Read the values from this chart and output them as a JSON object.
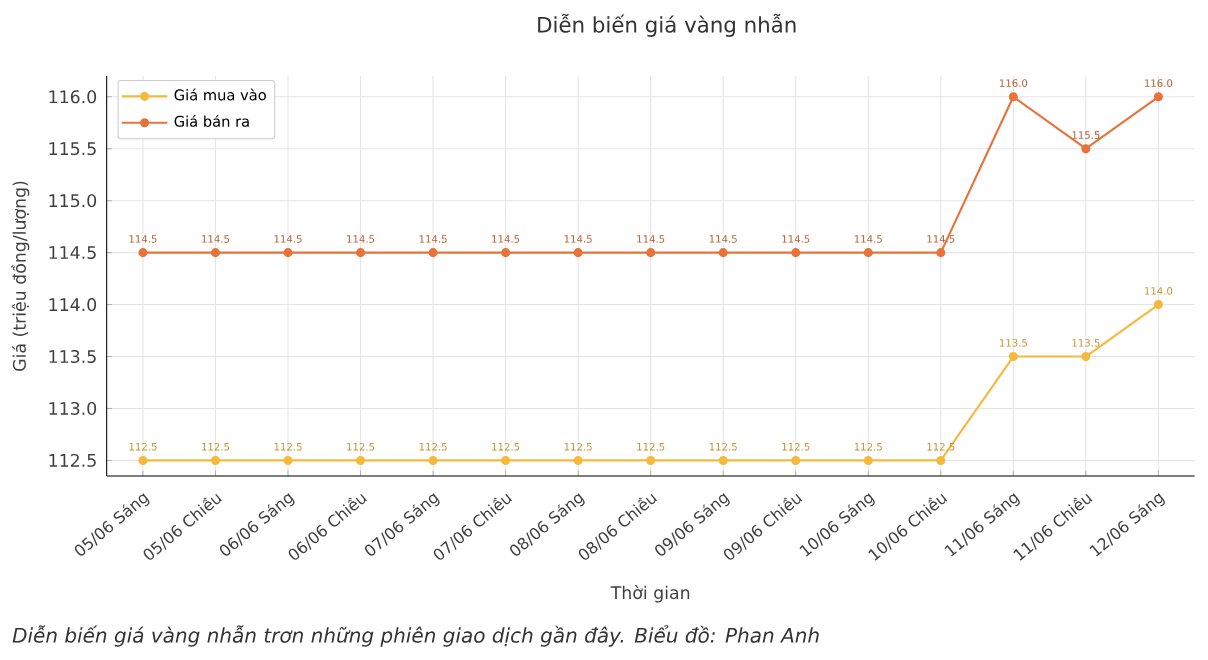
{
  "chart_data": {
    "type": "line",
    "title": "Diễn biến giá vàng nhẫn",
    "xlabel": "Thời gian",
    "ylabel": "Giá (triệu đồng/lượng)",
    "categories": [
      "05/06 Sáng",
      "05/06 Chiều",
      "06/06 Sáng",
      "06/06 Chiều",
      "07/06 Sáng",
      "07/06 Chiều",
      "08/06 Sáng",
      "08/06 Chiều",
      "09/06 Sáng",
      "09/06 Chiều",
      "10/06 Sáng",
      "10/06 Chiều",
      "11/06 Sáng",
      "11/06 Chiều",
      "12/06 Sáng"
    ],
    "series": [
      {
        "name": "Giá mua vào",
        "color": "#f5b93d",
        "values": [
          112.5,
          112.5,
          112.5,
          112.5,
          112.5,
          112.5,
          112.5,
          112.5,
          112.5,
          112.5,
          112.5,
          112.5,
          113.5,
          113.5,
          114.0
        ],
        "value_labels": [
          "112.5",
          "112.5",
          "112.5",
          "112.5",
          "112.5",
          "112.5",
          "112.5",
          "112.5",
          "112.5",
          "112.5",
          "112.5",
          "112.5",
          "113.5",
          "113.5",
          "114.0"
        ]
      },
      {
        "name": "Giá bán ra",
        "color": "#e8733a",
        "values": [
          114.5,
          114.5,
          114.5,
          114.5,
          114.5,
          114.5,
          114.5,
          114.5,
          114.5,
          114.5,
          114.5,
          114.5,
          116.0,
          115.5,
          116.0
        ],
        "value_labels": [
          "114.5",
          "114.5",
          "114.5",
          "114.5",
          "114.5",
          "114.5",
          "114.5",
          "114.5",
          "114.5",
          "114.5",
          "114.5",
          "114.5",
          "116.0",
          "115.5",
          "116.0"
        ]
      }
    ],
    "ylim": [
      112.35,
      116.2
    ],
    "yticks": [
      112.5,
      {
        "value": 113.0,
        "label": "113.0"
      },
      113.5,
      {
        "value": 114.0,
        "label": "114.0"
      },
      114.5,
      {
        "value": 115.0,
        "label": "115.0"
      },
      115.5,
      {
        "value": 116.0,
        "label": "116.0"
      }
    ],
    "grid": true,
    "legend": "top left",
    "marker": "circle",
    "line_style": "solid",
    "annotations": [
      "Diễn biến giá vàng nhẫn trơn những phiên giao dịch gần đây. Biểu đồ: Phan Anh"
    ]
  }
}
